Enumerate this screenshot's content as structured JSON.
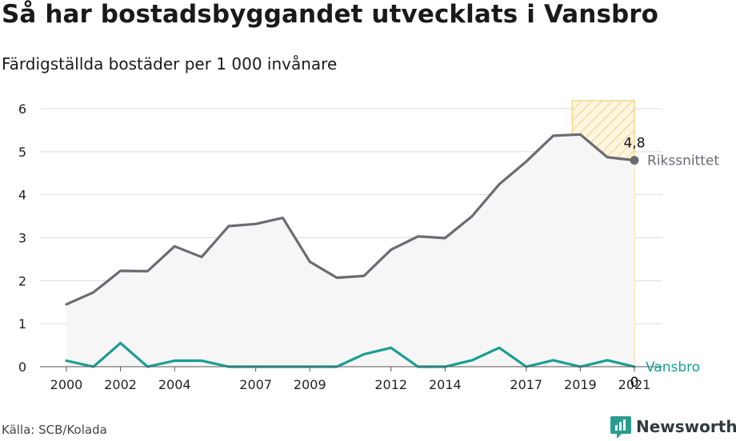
{
  "title": "Så har bostadsbyggandet utvecklats i Vansbro",
  "subtitle": "Färdigställda bostäder per 1 000 invånare",
  "source": "Källa: SCB/Kolada",
  "brand": "Newsworthy",
  "chart_data": {
    "type": "line",
    "x": [
      2000,
      2001,
      2002,
      2003,
      2004,
      2005,
      2006,
      2007,
      2008,
      2009,
      2010,
      2011,
      2012,
      2013,
      2014,
      2015,
      2016,
      2017,
      2018,
      2019,
      2020,
      2021
    ],
    "xticks": [
      2000,
      2002,
      2004,
      2007,
      2009,
      2012,
      2014,
      2017,
      2019,
      2021
    ],
    "xtick_labels": [
      "2000",
      "2002",
      "2004",
      "2007",
      "2009",
      "2012",
      "2014",
      "2017",
      "2019",
      "2021"
    ],
    "ylim": [
      0,
      6
    ],
    "yticks": [
      0,
      1,
      2,
      3,
      4,
      5,
      6
    ],
    "ytick_labels": [
      "0",
      "1",
      "2",
      "3",
      "4",
      "5",
      "6"
    ],
    "highlight_range": [
      2018.7,
      2021
    ],
    "series": [
      {
        "name": "Rikssnittet",
        "color": "#6b6b70",
        "values": [
          1.45,
          1.73,
          2.23,
          2.22,
          2.8,
          2.55,
          3.27,
          3.32,
          3.46,
          2.44,
          2.07,
          2.11,
          2.72,
          3.03,
          2.99,
          3.5,
          4.24,
          4.77,
          5.37,
          5.4,
          4.87,
          4.8
        ],
        "end_value_label": "4,8"
      },
      {
        "name": "Vansbro",
        "color": "#1a9e92",
        "values": [
          0.14,
          0.0,
          0.55,
          0.0,
          0.14,
          0.14,
          0.0,
          0.0,
          0.0,
          0.0,
          0.0,
          0.29,
          0.44,
          0.0,
          0.0,
          0.15,
          0.44,
          0.0,
          0.15,
          0.0,
          0.15,
          0.0
        ],
        "end_value_label": "0"
      }
    ]
  }
}
